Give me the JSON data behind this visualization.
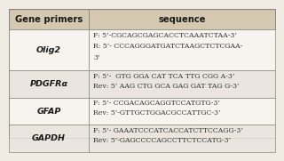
{
  "col_headers": [
    "Gene primers",
    "sequence"
  ],
  "rows": [
    {
      "gene": "Olig2",
      "seq_line1": "F: 5’-CGCAGCGAGCACCTCAAATCTAA-3’",
      "seq_line2": "R: 5’- CCCAGGGATGATCTAAGCTCTCGAA-",
      "seq_line3": "3’",
      "nlines": 3
    },
    {
      "gene": "PDGFRα",
      "seq_line1": "F: 5’-  GTG GGA CAT TCA TTG CGG A-3’",
      "seq_line2": "Rev: 5’ AAG CTG GCA GAG GAT TAG G-3’",
      "seq_line3": "",
      "nlines": 2
    },
    {
      "gene": "GFAP",
      "seq_line1": "F: 5’- CCGACAGCAGGTCCATGTG-3’",
      "seq_line2": "Rev: 5’-GTTGCTGGACGCCATTGC-3’",
      "seq_line3": "",
      "nlines": 2
    },
    {
      "gene": "GAPDH",
      "seq_line1": "F: 5’- GAAATCCCATCACCATCTTCCAGG-3’",
      "seq_line2": "Rev: 5’-GAGCCCCAGCCTTCTCCATG-3’",
      "seq_line3": "",
      "nlines": 2
    }
  ],
  "header_bg": "#d4c9b0",
  "row_bg_white": "#f7f4ef",
  "row_bg_gray": "#eae6df",
  "border_color": "#888880",
  "text_color_dark": "#1a1a1a",
  "text_color_seq": "#333333",
  "font_size_header": 7.2,
  "font_size_gene": 6.8,
  "font_size_body": 5.6,
  "col_split": 0.3,
  "fig_bg": "#f0ece4"
}
